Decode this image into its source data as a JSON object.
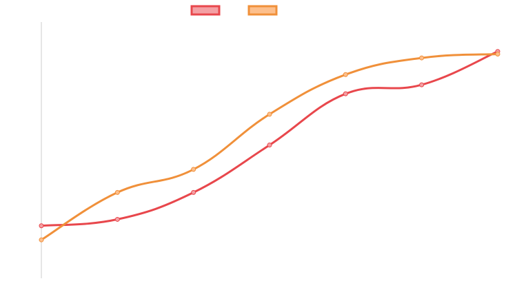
{
  "chart_data": {
    "type": "line",
    "x": [
      1,
      2,
      3,
      4,
      5,
      6,
      7
    ],
    "series": [
      {
        "values": [
          -3.4,
          -2.9,
          -0.8,
          2.9,
          6.9,
          7.6,
          10.2
        ],
        "color": "#e8474c",
        "fill": "#f4a0a4"
      },
      {
        "values": [
          -4.5,
          -0.8,
          1.0,
          5.3,
          8.4,
          9.7,
          10.0
        ],
        "color": "#f0903a",
        "fill": "#fdbf8c"
      }
    ],
    "ylim": [
      -7.5,
      12.5
    ],
    "grid": false,
    "legend_position": "top-center",
    "axis_color": "#cccccc"
  }
}
